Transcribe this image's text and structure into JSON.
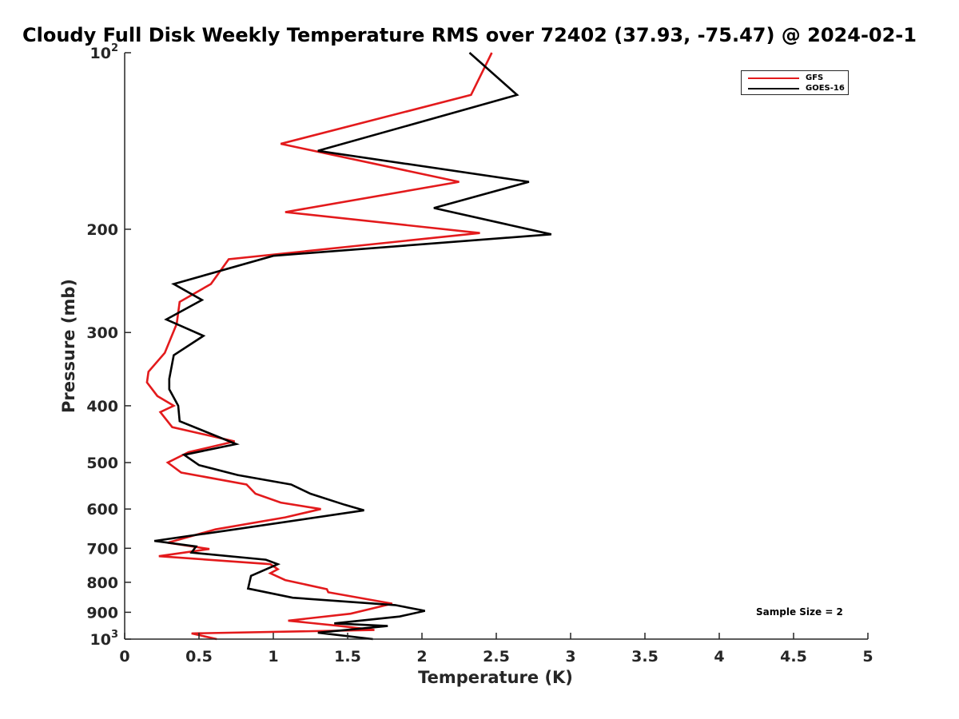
{
  "chart_data": {
    "type": "line",
    "title": "Cloudy Full Disk Weekly Temperature RMS over 72402 (37.93, -75.47) @ 2024-02-1",
    "xlabel": "Temperature (K)",
    "ylabel": "Pressure (mb)",
    "xlim": [
      0,
      5
    ],
    "ylim": [
      100,
      1000
    ],
    "y_scale": "log",
    "y_reversed": true,
    "grid": false,
    "legend_position": "top-right",
    "x_ticks": [
      0,
      0.5,
      1,
      1.5,
      2,
      2.5,
      3,
      3.5,
      4,
      4.5,
      5
    ],
    "x_tick_labels": [
      "0",
      "0.5",
      "1",
      "1.5",
      "2",
      "2.5",
      "3",
      "3.5",
      "4",
      "4.5",
      "5"
    ],
    "y_ticks": [
      {
        "value": 100,
        "base": "10",
        "exp": "2"
      },
      {
        "value": 200,
        "label": "200"
      },
      {
        "value": 300,
        "label": "300"
      },
      {
        "value": 400,
        "label": "400"
      },
      {
        "value": 500,
        "label": "500"
      },
      {
        "value": 600,
        "label": "600"
      },
      {
        "value": 700,
        "label": "700"
      },
      {
        "value": 800,
        "label": "800"
      },
      {
        "value": 900,
        "label": "900"
      },
      {
        "value": 1000,
        "base": "10",
        "exp": "3"
      }
    ],
    "annotation": "Sample Size = 2",
    "series": [
      {
        "name": "GFS",
        "color": "#e31a1c",
        "points": [
          [
            2.47,
            100
          ],
          [
            2.33,
            118
          ],
          [
            1.05,
            143
          ],
          [
            2.25,
            166
          ],
          [
            1.08,
            187
          ],
          [
            2.39,
            203
          ],
          [
            0.7,
            225
          ],
          [
            0.58,
            248
          ],
          [
            0.37,
            266
          ],
          [
            0.35,
            290
          ],
          [
            0.27,
            325
          ],
          [
            0.16,
            350
          ],
          [
            0.15,
            365
          ],
          [
            0.22,
            385
          ],
          [
            0.33,
            400
          ],
          [
            0.24,
            410
          ],
          [
            0.32,
            435
          ],
          [
            0.74,
            460
          ],
          [
            0.43,
            480
          ],
          [
            0.29,
            500
          ],
          [
            0.38,
            520
          ],
          [
            0.82,
            545
          ],
          [
            0.88,
            565
          ],
          [
            1.05,
            585
          ],
          [
            1.32,
            600
          ],
          [
            1.08,
            620
          ],
          [
            0.61,
            650
          ],
          [
            0.29,
            685
          ],
          [
            0.57,
            702
          ],
          [
            0.23,
            722
          ],
          [
            0.98,
            745
          ],
          [
            1.03,
            760
          ],
          [
            0.98,
            772
          ],
          [
            1.08,
            793
          ],
          [
            1.36,
            822
          ],
          [
            1.37,
            832
          ],
          [
            1.8,
            870
          ],
          [
            1.52,
            905
          ],
          [
            1.1,
            930
          ],
          [
            1.45,
            950
          ],
          [
            1.68,
            965
          ],
          [
            0.45,
            978
          ],
          [
            0.62,
            1000
          ]
        ]
      },
      {
        "name": "GOES-16",
        "color": "#000000",
        "points": [
          [
            2.32,
            100
          ],
          [
            2.64,
            118
          ],
          [
            1.3,
            147
          ],
          [
            2.72,
            166
          ],
          [
            2.08,
            184
          ],
          [
            2.87,
            204
          ],
          [
            1.0,
            222
          ],
          [
            0.33,
            248
          ],
          [
            0.52,
            264
          ],
          [
            0.28,
            285
          ],
          [
            0.53,
            304
          ],
          [
            0.33,
            328
          ],
          [
            0.3,
            360
          ],
          [
            0.3,
            375
          ],
          [
            0.36,
            400
          ],
          [
            0.37,
            425
          ],
          [
            0.75,
            465
          ],
          [
            0.4,
            485
          ],
          [
            0.5,
            505
          ],
          [
            0.76,
            525
          ],
          [
            1.12,
            545
          ],
          [
            1.25,
            565
          ],
          [
            1.48,
            590
          ],
          [
            1.61,
            603
          ],
          [
            0.74,
            650
          ],
          [
            0.2,
            680
          ],
          [
            0.48,
            695
          ],
          [
            0.45,
            712
          ],
          [
            0.95,
            732
          ],
          [
            1.03,
            745
          ],
          [
            0.85,
            780
          ],
          [
            0.83,
            820
          ],
          [
            1.13,
            850
          ],
          [
            1.82,
            875
          ],
          [
            2.02,
            895
          ],
          [
            1.85,
            915
          ],
          [
            1.41,
            940
          ],
          [
            1.77,
            950
          ],
          [
            1.3,
            975
          ],
          [
            1.67,
            1000
          ]
        ]
      }
    ]
  }
}
